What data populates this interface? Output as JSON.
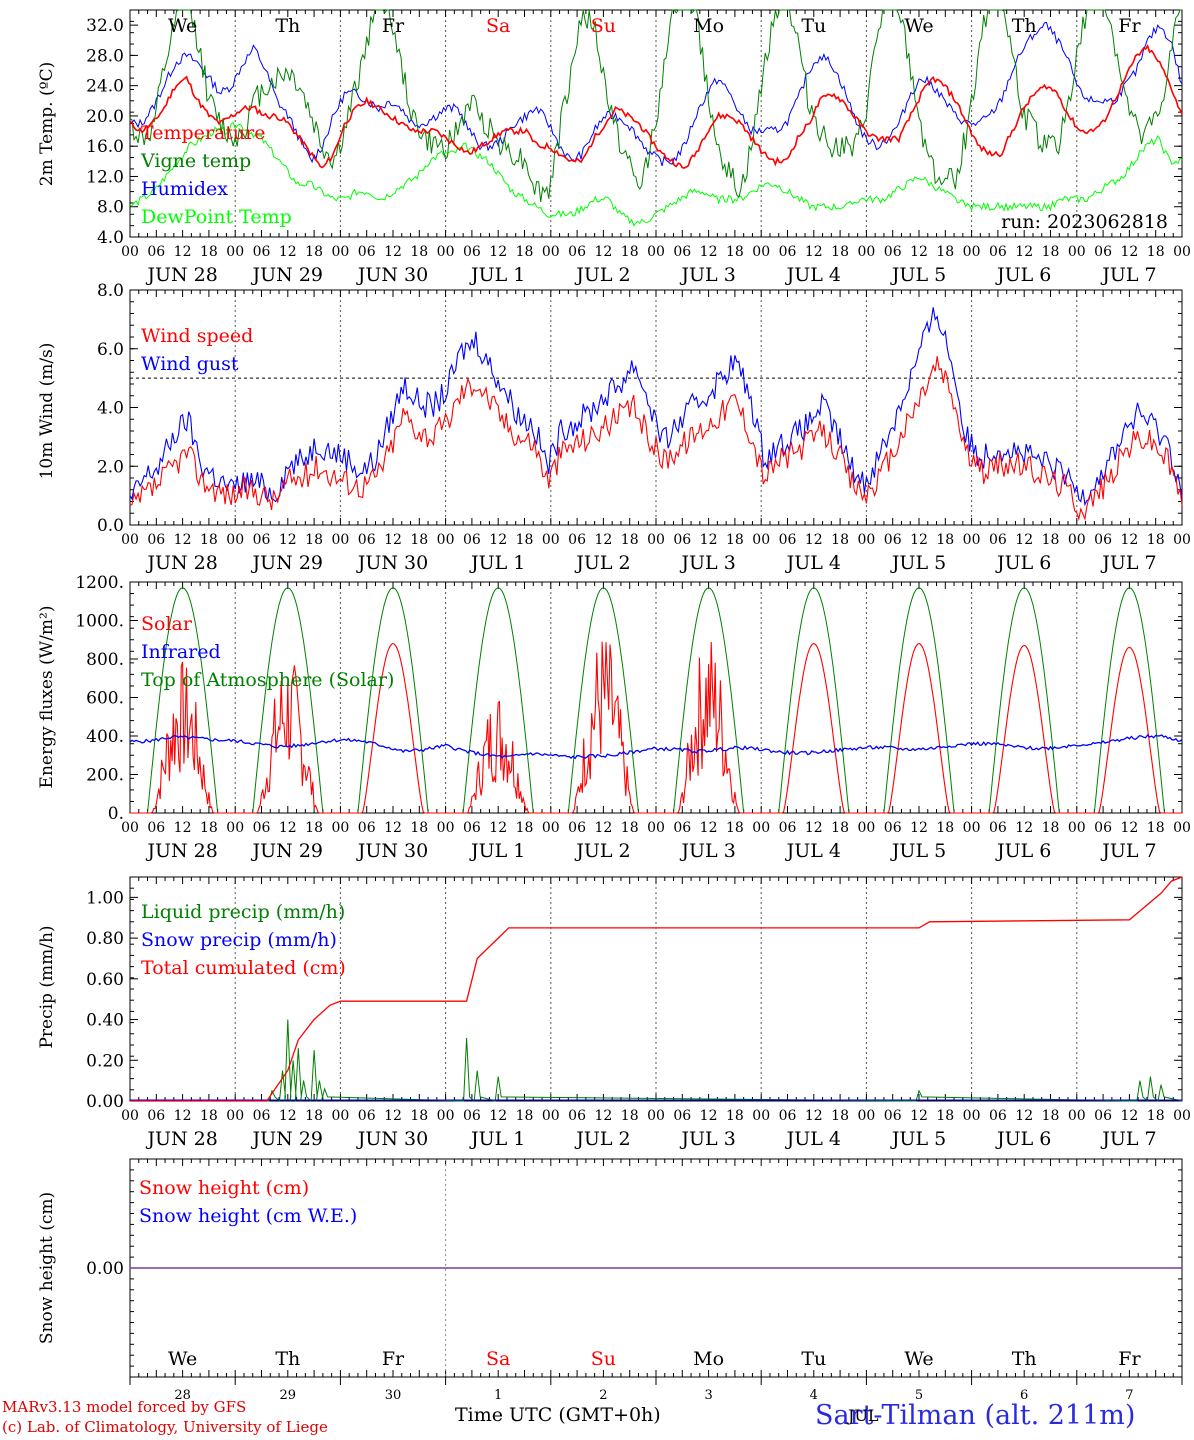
{
  "chart_data": [
    {
      "type": "line",
      "ylabel": "2m Temp. (ºC)",
      "ylim": [
        4,
        34
      ],
      "yticks": [
        "4.0",
        "8.0",
        "12.0",
        "16.0",
        "20.0",
        "24.0",
        "28.0",
        "32.0"
      ],
      "run_label": "run: 2023062818",
      "series": [
        {
          "name": "Temperature",
          "color": "#ff0000",
          "values": [
            19,
            18,
            19,
            21,
            24,
            25,
            22,
            20,
            19,
            20,
            21,
            21,
            20,
            20,
            19,
            17,
            15,
            13,
            15,
            19,
            21,
            22,
            21,
            20,
            19,
            18,
            18,
            18,
            17,
            16,
            15,
            16,
            17,
            18,
            18,
            18,
            16,
            16,
            15,
            14,
            14,
            17,
            19,
            21,
            20,
            19,
            17,
            15,
            14,
            13,
            15,
            18,
            20,
            20,
            19,
            17,
            15,
            14,
            14,
            17,
            19,
            22,
            23,
            22,
            20,
            18,
            17,
            17,
            17,
            20,
            23,
            25,
            24,
            22,
            19,
            16,
            15,
            15,
            18,
            21,
            23,
            24,
            23,
            20,
            18,
            18,
            19,
            22,
            25,
            28,
            29,
            27,
            24,
            20
          ]
        },
        {
          "name": "Vigne temp",
          "color": "#008000",
          "values": [
            19,
            17,
            18,
            26,
            32,
            36,
            30,
            22,
            19,
            17,
            18,
            22,
            24,
            25,
            26,
            24,
            20,
            16,
            14,
            18,
            24,
            30,
            36,
            34,
            26,
            20,
            17,
            16,
            16,
            18,
            22,
            20,
            18,
            16,
            15,
            14,
            10,
            10,
            18,
            26,
            34,
            32,
            24,
            18,
            14,
            10,
            16,
            24,
            34,
            38,
            34,
            24,
            16,
            12,
            10,
            16,
            26,
            34,
            36,
            30,
            22,
            18,
            16,
            16,
            15,
            20,
            30,
            36,
            34,
            26,
            18,
            13,
            11,
            12,
            18,
            28,
            36,
            36,
            28,
            20,
            18,
            16,
            16,
            22,
            30,
            36,
            36,
            30,
            22,
            18,
            18,
            20,
            28,
            36
          ]
        },
        {
          "name": "Humidex",
          "color": "#0000ff",
          "values": [
            19,
            19,
            21,
            24,
            27,
            28,
            27,
            25,
            23,
            24,
            27,
            29,
            26,
            22,
            20,
            17,
            14,
            16,
            20,
            23,
            23,
            22,
            21,
            22,
            21,
            19,
            19,
            20,
            21,
            21,
            18,
            16,
            16,
            17,
            19,
            20,
            21,
            19,
            16,
            14,
            15,
            18,
            20,
            20,
            19,
            17,
            15,
            14,
            14,
            16,
            20,
            23,
            25,
            23,
            20,
            18,
            18,
            18,
            19,
            22,
            26,
            28,
            27,
            24,
            20,
            17,
            16,
            17,
            19,
            23,
            25,
            24,
            22,
            20,
            19,
            19,
            20,
            22,
            26,
            29,
            31,
            32,
            30,
            27,
            23,
            22,
            22,
            22,
            24,
            26,
            30,
            32,
            30,
            24
          ]
        },
        {
          "name": "DewPoint Temp",
          "color": "#00ff00",
          "values": [
            8,
            9,
            10,
            12,
            14,
            16,
            17,
            18,
            18,
            19,
            18,
            17,
            15,
            13,
            11,
            11,
            10,
            9,
            9,
            10,
            10,
            9,
            10,
            11,
            12,
            14,
            15,
            15,
            16,
            15,
            14,
            12,
            10,
            9,
            8,
            7,
            7,
            7,
            8,
            9,
            9,
            7,
            6,
            6,
            7,
            8,
            9,
            10,
            10,
            9,
            9,
            9,
            10,
            11,
            11,
            10,
            9,
            8,
            8,
            8,
            8,
            9,
            9,
            9,
            10,
            11,
            12,
            11,
            10,
            9,
            8,
            8,
            8,
            8,
            8,
            8,
            8,
            8,
            9,
            9,
            9,
            10,
            11,
            12,
            14,
            16,
            17,
            14,
            14
          ]
        }
      ]
    },
    {
      "type": "line",
      "ylabel": "10m Wind (m/s)",
      "ylim": [
        0,
        8
      ],
      "yticks": [
        "0.0",
        "2.0",
        "4.0",
        "6.0",
        "8.0"
      ],
      "reference_line": 5,
      "series": [
        {
          "name": "Wind speed",
          "color": "#ff0000",
          "values": [
            0.5,
            1.0,
            1.4,
            2.0,
            2.5,
            1.5,
            1.2,
            1.0,
            1.2,
            1.1,
            0.8,
            1.5,
            1.6,
            2.0,
            1.7,
            1.5,
            1.3,
            1.6,
            2.5,
            3.8,
            3.2,
            3.0,
            3.5,
            4.5,
            4.9,
            4.2,
            3.5,
            3.0,
            2.8,
            1.5,
            2.5,
            2.8,
            3.0,
            3.4,
            3.7,
            4.0,
            3.0,
            2.2,
            2.6,
            3.0,
            3.4,
            3.8,
            4.3,
            3.2,
            1.6,
            2.2,
            2.4,
            2.8,
            3.2,
            2.6,
            1.5,
            1.0,
            1.6,
            2.5,
            3.5,
            4.5,
            5.5,
            4.5,
            2.5,
            1.8,
            2.0,
            2.1,
            2.0,
            1.8,
            1.5,
            1.3,
            0.5,
            1.0,
            1.6,
            2.5,
            3.0,
            2.8,
            2.2,
            0.9
          ]
        },
        {
          "name": "Wind gust",
          "color": "#0000ff",
          "values": [
            0.8,
            1.6,
            2.0,
            3.0,
            3.6,
            2.0,
            1.6,
            1.2,
            1.5,
            1.4,
            1.0,
            2.0,
            2.2,
            2.8,
            2.5,
            2.3,
            1.8,
            2.2,
            3.5,
            4.8,
            4.2,
            4.0,
            4.6,
            5.9,
            6.3,
            5.4,
            4.6,
            3.7,
            3.4,
            2.0,
            3.3,
            3.5,
            3.9,
            4.4,
            4.8,
            5.5,
            4.2,
            2.8,
            3.4,
            4.0,
            4.4,
            5.0,
            5.6,
            4.4,
            2.3,
            2.7,
            3.0,
            3.4,
            4.1,
            3.2,
            2.0,
            1.4,
            2.4,
            3.5,
            4.8,
            6.2,
            7.3,
            5.6,
            3.0,
            2.3,
            2.6,
            2.6,
            2.4,
            2.2,
            2.0,
            1.6,
            1.0,
            1.5,
            2.2,
            3.2,
            3.8,
            3.4,
            2.8,
            1.2
          ]
        }
      ]
    },
    {
      "type": "line",
      "ylabel": "Energy fluxes (W/m²)",
      "ylim": [
        0,
        1200
      ],
      "yticks": [
        "0.",
        "200.",
        "400.",
        "600.",
        "800.",
        "1000.",
        "1200."
      ],
      "series": [
        {
          "name": "Solar",
          "color": "#ff0000",
          "peaks": [
            730,
            770,
            880,
            600,
            880,
            880,
            880,
            880,
            870,
            860
          ]
        },
        {
          "name": "Infrared",
          "color": "#0000ff",
          "values": [
            370,
            375,
            395,
            390,
            380,
            375,
            360,
            345,
            350,
            370,
            380,
            375,
            350,
            320,
            330,
            350,
            320,
            300,
            290,
            310,
            300,
            290,
            295,
            300,
            320,
            335,
            330,
            320,
            330,
            340,
            330,
            315,
            310,
            320,
            330,
            340,
            340,
            330,
            335,
            350,
            360,
            360,
            345,
            335,
            340,
            355,
            360,
            380,
            395,
            400,
            375
          ]
        },
        {
          "name": "Top of Atmosphere (Solar)",
          "color": "#008000",
          "peak": 1170
        }
      ]
    },
    {
      "type": "line",
      "ylabel": "Precip (mm/h)",
      "ylim": [
        0,
        1.1
      ],
      "yticks": [
        "0.00",
        "0.20",
        "0.40",
        "0.60",
        "0.80",
        "1.00"
      ],
      "series": [
        {
          "name": "Liquid precip (mm/h)",
          "color": "#008000",
          "spikes": [
            [
              1.35,
              0.05
            ],
            [
              1.45,
              0.15
            ],
            [
              1.5,
              0.4
            ],
            [
              1.55,
              0.2
            ],
            [
              1.6,
              0.26
            ],
            [
              1.65,
              0.1
            ],
            [
              1.75,
              0.25
            ],
            [
              1.8,
              0.1
            ],
            [
              1.85,
              0.06
            ],
            [
              3.2,
              0.31
            ],
            [
              3.3,
              0.15
            ],
            [
              3.5,
              0.12
            ],
            [
              7.5,
              0.05
            ],
            [
              9.6,
              0.1
            ],
            [
              9.7,
              0.12
            ],
            [
              9.8,
              0.08
            ]
          ]
        },
        {
          "name": "Snow precip (mm/h)",
          "color": "#0000ff",
          "values": [
            0
          ]
        },
        {
          "name": "Total cumulated (cm)",
          "color": "#ff0000",
          "steps": [
            [
              0,
              0
            ],
            [
              1.3,
              0
            ],
            [
              1.5,
              0.15
            ],
            [
              1.6,
              0.3
            ],
            [
              1.75,
              0.4
            ],
            [
              1.9,
              0.47
            ],
            [
              2.0,
              0.49
            ],
            [
              3.2,
              0.49
            ],
            [
              3.3,
              0.7
            ],
            [
              3.5,
              0.8
            ],
            [
              3.6,
              0.85
            ],
            [
              7.5,
              0.85
            ],
            [
              7.6,
              0.88
            ],
            [
              9.5,
              0.89
            ],
            [
              9.8,
              1.02
            ],
            [
              9.9,
              1.08
            ],
            [
              10,
              1.1
            ]
          ]
        }
      ]
    },
    {
      "type": "line",
      "ylabel": "Snow height (cm)",
      "ylim": [
        -1,
        1
      ],
      "yticks": [
        "0.00"
      ],
      "series": [
        {
          "name": "Snow height (cm)",
          "color": "#ff0000",
          "values": [
            0
          ]
        },
        {
          "name": "Snow height (cm W.E.)",
          "color": "#0000ff",
          "values": [
            0
          ]
        }
      ]
    }
  ],
  "x_axis": {
    "hour_ticks": [
      "00",
      "06",
      "12",
      "18"
    ],
    "end_tick": "00",
    "date_labels": [
      "JUN 28",
      "JUN 29",
      "JUN 30",
      "JUL  1",
      "JUL  2",
      "JUL  3",
      "JUL  4",
      "JUL  5",
      "JUL  6",
      "JUL  7"
    ],
    "weekdays": [
      "We",
      "Th",
      "Fr",
      "Sa",
      "Su",
      "Mo",
      "Tu",
      "We",
      "Th",
      "Fr"
    ],
    "weekend_color": "#ff0000",
    "bottom_day_numbers": [
      "28",
      "29",
      "30",
      "1",
      "2",
      "3",
      "4",
      "5",
      "6",
      "7"
    ],
    "month_label": "JUL",
    "xlabel": "Time UTC (GMT+0h)"
  },
  "footer": {
    "model_line": "MARv3.13 model forced by GFS",
    "lab_line": "(c) Lab. of Climatology, University of Liege",
    "station": "Sart-Tilman (alt. 211m)"
  }
}
